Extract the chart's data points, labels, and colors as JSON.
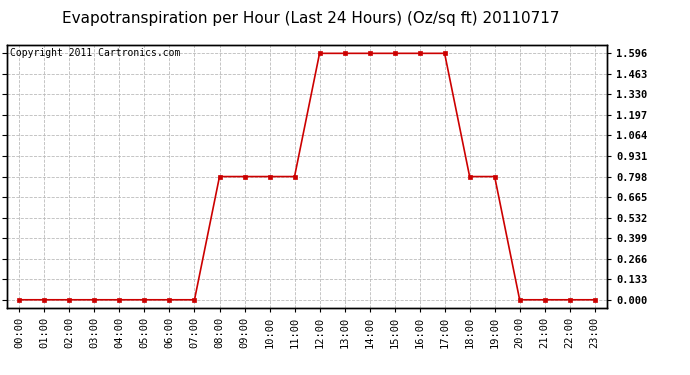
{
  "title": "Evapotranspiration per Hour (Last 24 Hours) (Oz/sq ft) 20110717",
  "copyright": "Copyright 2011 Cartronics.com",
  "x_labels": [
    "00:00",
    "01:00",
    "02:00",
    "03:00",
    "04:00",
    "05:00",
    "06:00",
    "07:00",
    "08:00",
    "09:00",
    "10:00",
    "11:00",
    "12:00",
    "13:00",
    "14:00",
    "15:00",
    "16:00",
    "17:00",
    "18:00",
    "19:00",
    "20:00",
    "21:00",
    "22:00",
    "23:00"
  ],
  "y_values": [
    0.0,
    0.0,
    0.0,
    0.0,
    0.0,
    0.0,
    0.0,
    0.0,
    0.798,
    0.798,
    0.798,
    0.798,
    1.596,
    1.596,
    1.596,
    1.596,
    1.596,
    1.596,
    0.798,
    0.798,
    0.0,
    0.0,
    0.0,
    0.0
  ],
  "line_color": "#cc0000",
  "marker": "s",
  "marker_size": 3,
  "background_color": "#ffffff",
  "grid_color": "#bbbbbb",
  "y_ticks": [
    0.0,
    0.133,
    0.266,
    0.399,
    0.532,
    0.665,
    0.798,
    0.931,
    1.064,
    1.197,
    1.33,
    1.463,
    1.596
  ],
  "ylim_min": -0.05,
  "ylim_max": 1.65,
  "title_fontsize": 11,
  "copyright_fontsize": 7,
  "tick_fontsize": 7.5
}
